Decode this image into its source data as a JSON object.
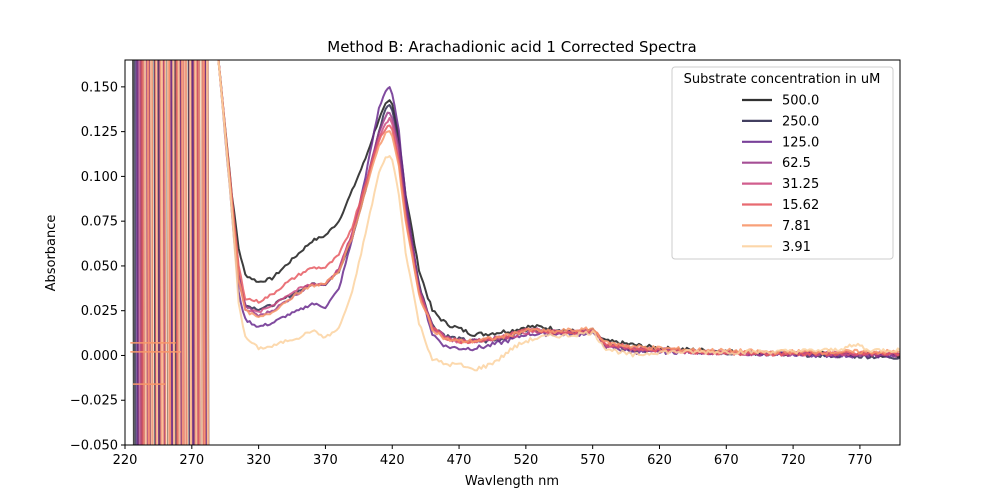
{
  "chart_data": {
    "type": "line",
    "title": "Method B: Arachadionic acid 1 Corrected Spectra",
    "xlabel": "Wavlength nm",
    "ylabel": "Absorbance",
    "xlim": [
      220,
      800
    ],
    "ylim": [
      -0.05,
      0.165
    ],
    "xticks": [
      220,
      270,
      320,
      370,
      420,
      470,
      520,
      570,
      620,
      670,
      720,
      770
    ],
    "yticks": [
      -0.05,
      -0.025,
      0.0,
      0.025,
      0.05,
      0.075,
      0.1,
      0.125,
      0.15
    ],
    "ytick_labels": [
      "−0.050",
      "−0.025",
      "0.000",
      "0.025",
      "0.050",
      "0.075",
      "0.100",
      "0.125",
      "0.150"
    ],
    "grid": false,
    "legend_title": "Substrate concentration in uM",
    "legend_position": "upper right",
    "series": [
      {
        "name": "500.0",
        "color": "#1b1b1b",
        "x": [
          290,
          300,
          305,
          310,
          320,
          330,
          340,
          350,
          360,
          370,
          380,
          390,
          400,
          410,
          415,
          418,
          420,
          425,
          430,
          440,
          450,
          460,
          470,
          480,
          490,
          500,
          510,
          520,
          530,
          540,
          550,
          560,
          570,
          580,
          600,
          620,
          650,
          700,
          750,
          800
        ],
        "y": [
          0.165,
          0.09,
          0.06,
          0.045,
          0.041,
          0.043,
          0.05,
          0.057,
          0.064,
          0.067,
          0.075,
          0.092,
          0.11,
          0.132,
          0.14,
          0.142,
          0.14,
          0.122,
          0.09,
          0.048,
          0.025,
          0.018,
          0.015,
          0.012,
          0.012,
          0.013,
          0.014,
          0.016,
          0.016,
          0.015,
          0.014,
          0.013,
          0.013,
          0.008,
          0.006,
          0.004,
          0.003,
          0.001,
          0.001,
          0.0
        ]
      },
      {
        "name": "250.0",
        "color": "#2e2a4f",
        "x": [
          290,
          300,
          305,
          310,
          320,
          330,
          340,
          350,
          360,
          370,
          380,
          390,
          400,
          410,
          415,
          418,
          420,
          425,
          430,
          440,
          450,
          460,
          470,
          480,
          490,
          500,
          510,
          520,
          530,
          540,
          550,
          560,
          570,
          580,
          600,
          620,
          650,
          700,
          750,
          800
        ],
        "y": [
          0.165,
          0.085,
          0.045,
          0.028,
          0.026,
          0.028,
          0.032,
          0.036,
          0.04,
          0.04,
          0.047,
          0.066,
          0.092,
          0.125,
          0.138,
          0.14,
          0.137,
          0.118,
          0.085,
          0.04,
          0.017,
          0.011,
          0.009,
          0.008,
          0.008,
          0.009,
          0.011,
          0.014,
          0.014,
          0.013,
          0.013,
          0.013,
          0.014,
          0.006,
          0.003,
          0.003,
          0.002,
          0.001,
          0.0,
          -0.001
        ]
      },
      {
        "name": "125.0",
        "color": "#6a2c8e",
        "x": [
          290,
          300,
          305,
          310,
          320,
          330,
          340,
          350,
          360,
          370,
          380,
          390,
          400,
          410,
          415,
          418,
          420,
          425,
          430,
          440,
          450,
          460,
          470,
          480,
          490,
          500,
          510,
          520,
          530,
          540,
          550,
          560,
          570,
          580,
          600,
          620,
          650,
          700,
          750,
          800
        ],
        "y": [
          0.165,
          0.08,
          0.035,
          0.02,
          0.016,
          0.018,
          0.022,
          0.025,
          0.029,
          0.027,
          0.037,
          0.065,
          0.1,
          0.138,
          0.148,
          0.15,
          0.146,
          0.125,
          0.088,
          0.038,
          0.012,
          0.005,
          0.004,
          0.004,
          0.005,
          0.007,
          0.009,
          0.012,
          0.012,
          0.012,
          0.012,
          0.012,
          0.013,
          0.005,
          0.002,
          0.002,
          0.002,
          0.001,
          0.0,
          0.0
        ]
      },
      {
        "name": "62.5",
        "color": "#9b3c8a",
        "x": [
          290,
          300,
          305,
          310,
          320,
          330,
          340,
          350,
          360,
          370,
          380,
          390,
          400,
          410,
          415,
          418,
          420,
          425,
          430,
          440,
          450,
          460,
          470,
          480,
          490,
          500,
          510,
          520,
          530,
          540,
          550,
          560,
          570,
          580,
          600,
          620,
          650,
          700,
          750,
          800
        ],
        "y": [
          0.165,
          0.085,
          0.045,
          0.028,
          0.022,
          0.025,
          0.03,
          0.035,
          0.04,
          0.04,
          0.048,
          0.068,
          0.095,
          0.125,
          0.134,
          0.136,
          0.133,
          0.115,
          0.082,
          0.038,
          0.016,
          0.01,
          0.008,
          0.008,
          0.009,
          0.01,
          0.012,
          0.014,
          0.014,
          0.013,
          0.013,
          0.013,
          0.014,
          0.006,
          0.004,
          0.003,
          0.002,
          0.001,
          0.001,
          0.0
        ]
      },
      {
        "name": "31.25",
        "color": "#cc4c82",
        "x": [
          290,
          300,
          305,
          310,
          320,
          330,
          340,
          350,
          360,
          370,
          380,
          390,
          400,
          410,
          415,
          418,
          420,
          425,
          430,
          440,
          450,
          460,
          470,
          480,
          490,
          500,
          510,
          520,
          530,
          540,
          550,
          560,
          570,
          580,
          600,
          620,
          650,
          700,
          750,
          800
        ],
        "y": [
          0.165,
          0.085,
          0.042,
          0.026,
          0.024,
          0.028,
          0.033,
          0.037,
          0.04,
          0.04,
          0.048,
          0.068,
          0.095,
          0.122,
          0.13,
          0.132,
          0.129,
          0.11,
          0.078,
          0.036,
          0.016,
          0.01,
          0.008,
          0.008,
          0.009,
          0.01,
          0.011,
          0.013,
          0.013,
          0.013,
          0.013,
          0.013,
          0.014,
          0.006,
          0.004,
          0.003,
          0.002,
          0.001,
          0.001,
          0.001
        ]
      },
      {
        "name": "15.62",
        "color": "#e65a62",
        "x": [
          290,
          300,
          305,
          310,
          320,
          330,
          340,
          350,
          360,
          370,
          380,
          390,
          400,
          410,
          415,
          418,
          420,
          425,
          430,
          440,
          450,
          460,
          470,
          480,
          490,
          500,
          510,
          520,
          530,
          540,
          550,
          560,
          570,
          580,
          600,
          620,
          650,
          700,
          750,
          800
        ],
        "y": [
          0.165,
          0.088,
          0.05,
          0.032,
          0.03,
          0.034,
          0.04,
          0.045,
          0.049,
          0.049,
          0.056,
          0.072,
          0.096,
          0.12,
          0.127,
          0.129,
          0.126,
          0.108,
          0.077,
          0.035,
          0.015,
          0.01,
          0.008,
          0.008,
          0.009,
          0.01,
          0.012,
          0.014,
          0.014,
          0.013,
          0.013,
          0.013,
          0.014,
          0.007,
          0.004,
          0.003,
          0.002,
          0.001,
          0.001,
          0.001
        ]
      },
      {
        "name": "7.81",
        "color": "#f7966a",
        "x": [
          290,
          300,
          305,
          310,
          320,
          330,
          340,
          350,
          360,
          370,
          380,
          390,
          400,
          410,
          415,
          418,
          420,
          425,
          430,
          440,
          450,
          460,
          470,
          480,
          490,
          500,
          510,
          520,
          530,
          540,
          550,
          560,
          570,
          580,
          600,
          620,
          650,
          700,
          750,
          800
        ],
        "y": [
          0.165,
          0.085,
          0.043,
          0.025,
          0.021,
          0.024,
          0.03,
          0.035,
          0.039,
          0.04,
          0.047,
          0.066,
          0.092,
          0.117,
          0.124,
          0.126,
          0.123,
          0.105,
          0.075,
          0.034,
          0.015,
          0.009,
          0.008,
          0.008,
          0.009,
          0.01,
          0.012,
          0.014,
          0.014,
          0.013,
          0.014,
          0.014,
          0.015,
          0.007,
          0.005,
          0.004,
          0.003,
          0.002,
          0.002,
          0.002
        ]
      },
      {
        "name": "3.91",
        "color": "#fcd2a0",
        "x": [
          290,
          300,
          305,
          310,
          320,
          330,
          340,
          350,
          360,
          370,
          380,
          390,
          400,
          410,
          415,
          418,
          420,
          425,
          430,
          440,
          450,
          460,
          470,
          480,
          490,
          500,
          510,
          520,
          530,
          540,
          550,
          560,
          570,
          580,
          600,
          620,
          650,
          700,
          750,
          770,
          775,
          800
        ],
        "y": [
          0.165,
          0.08,
          0.03,
          0.01,
          0.004,
          0.005,
          0.008,
          0.01,
          0.014,
          0.01,
          0.015,
          0.035,
          0.068,
          0.102,
          0.11,
          0.112,
          0.109,
          0.09,
          0.058,
          0.018,
          -0.002,
          -0.005,
          -0.005,
          -0.008,
          -0.006,
          -0.002,
          0.004,
          0.008,
          0.01,
          0.011,
          0.011,
          0.012,
          0.013,
          0.004,
          0.0,
          0.002,
          0.002,
          0.002,
          0.003,
          0.006,
          0.003,
          0.003
        ]
      }
    ]
  }
}
